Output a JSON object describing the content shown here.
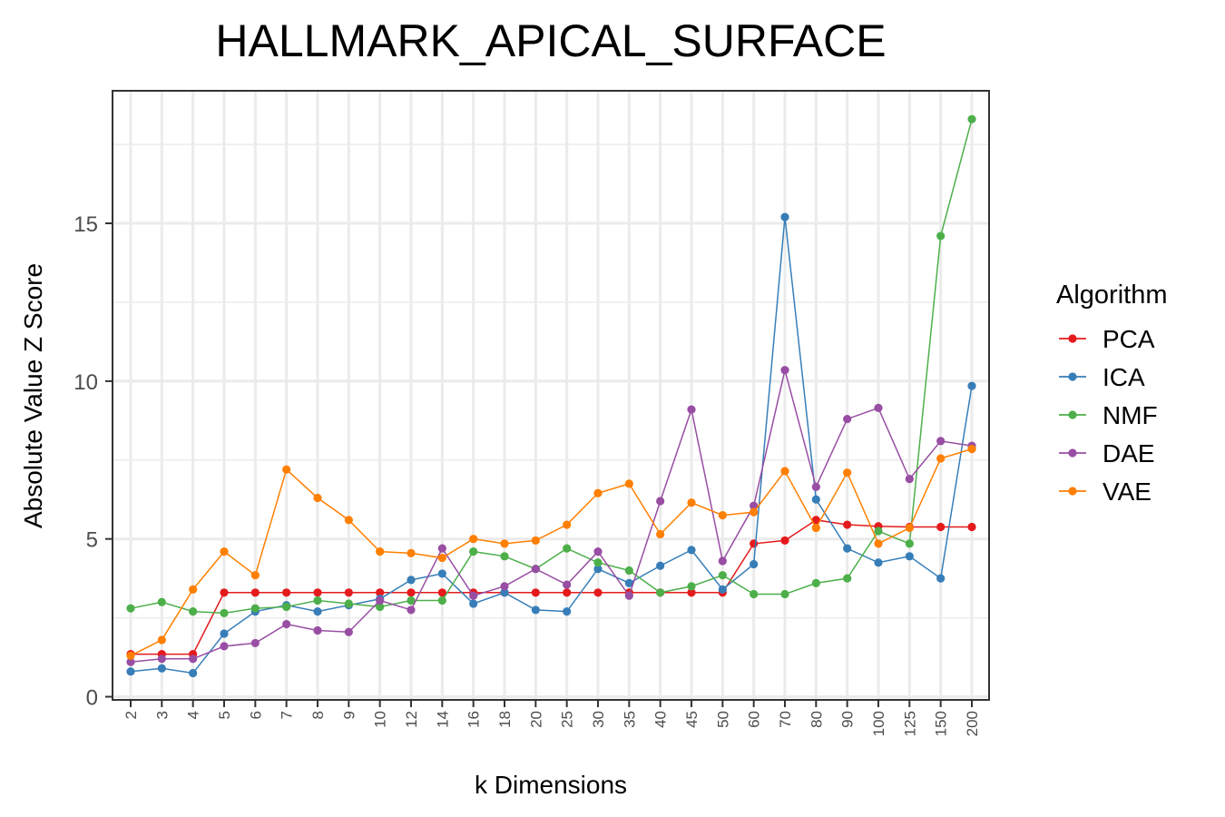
{
  "chart_data": {
    "type": "line",
    "title": "HALLMARK_APICAL_SURFACE",
    "xlabel": "k Dimensions",
    "ylabel": "Absolute Value Z Score",
    "categories": [
      "2",
      "3",
      "4",
      "5",
      "6",
      "7",
      "8",
      "9",
      "10",
      "12",
      "14",
      "16",
      "18",
      "20",
      "25",
      "30",
      "35",
      "40",
      "45",
      "50",
      "60",
      "70",
      "80",
      "90",
      "100",
      "125",
      "150",
      "200"
    ],
    "ylim": [
      -0.1,
      19.2
    ],
    "yticks": [
      0,
      5,
      10,
      15
    ],
    "ytick_labels": [
      "0",
      "5",
      "10",
      "15"
    ],
    "grid": true,
    "legend_title": "Algorithm",
    "legend_position": "right",
    "series": [
      {
        "name": "PCA",
        "color": "#e41a1c",
        "values": [
          1.35,
          1.35,
          1.35,
          3.3,
          3.3,
          3.3,
          3.3,
          3.3,
          3.3,
          3.3,
          3.3,
          3.3,
          3.3,
          3.3,
          3.3,
          3.3,
          3.3,
          3.3,
          3.3,
          3.3,
          4.85,
          4.95,
          5.6,
          5.45,
          5.4,
          5.38,
          5.38,
          5.38
        ]
      },
      {
        "name": "ICA",
        "color": "#377eb8",
        "values": [
          0.8,
          0.9,
          0.75,
          2.0,
          2.7,
          2.9,
          2.7,
          2.9,
          3.1,
          3.7,
          3.9,
          2.95,
          3.3,
          2.75,
          2.7,
          4.05,
          3.6,
          4.15,
          4.65,
          3.4,
          4.2,
          15.2,
          6.25,
          4.7,
          4.25,
          4.45,
          3.75,
          9.85
        ]
      },
      {
        "name": "NMF",
        "color": "#4daf4a",
        "values": [
          2.8,
          3.0,
          2.7,
          2.65,
          2.8,
          2.85,
          3.05,
          2.95,
          2.85,
          3.05,
          3.05,
          4.6,
          4.45,
          4.05,
          4.7,
          4.25,
          4.0,
          3.3,
          3.5,
          3.85,
          3.25,
          3.25,
          3.6,
          3.75,
          5.25,
          4.85,
          14.6,
          18.3
        ]
      },
      {
        "name": "DAE",
        "color": "#984ea3",
        "values": [
          1.1,
          1.2,
          1.2,
          1.6,
          1.7,
          2.3,
          2.1,
          2.05,
          3.05,
          2.75,
          4.7,
          3.2,
          3.5,
          4.05,
          3.55,
          4.6,
          3.2,
          6.2,
          9.1,
          4.3,
          6.05,
          10.35,
          6.65,
          8.8,
          9.15,
          6.9,
          8.1,
          7.95
        ]
      },
      {
        "name": "VAE",
        "color": "#ff7f00",
        "values": [
          1.3,
          1.8,
          3.4,
          4.6,
          3.85,
          7.2,
          6.3,
          5.6,
          4.6,
          4.55,
          4.4,
          5.0,
          4.85,
          4.95,
          5.45,
          6.45,
          6.75,
          5.15,
          6.15,
          5.75,
          5.85,
          7.15,
          5.35,
          7.1,
          4.85,
          5.35,
          7.55,
          7.85
        ]
      }
    ]
  }
}
